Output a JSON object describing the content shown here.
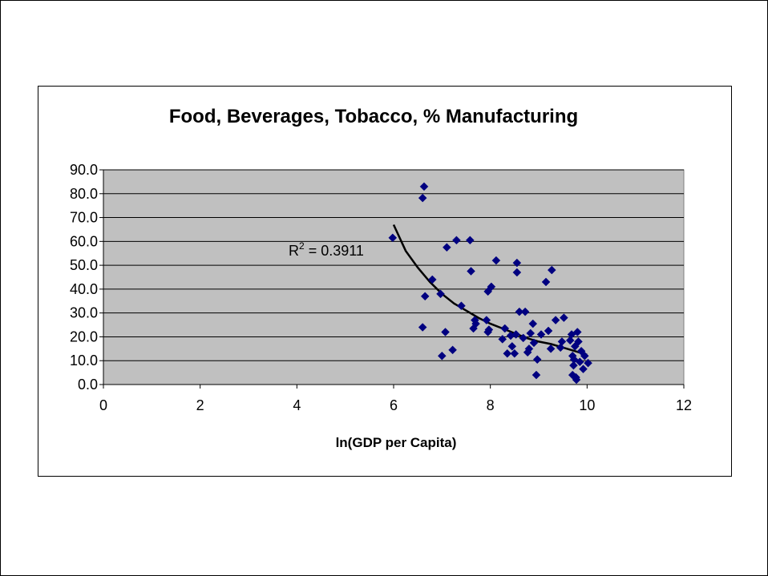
{
  "chart_data": {
    "type": "scatter",
    "title": "Food, Beverages, Tobacco, % Manufacturing",
    "xlabel": "ln(GDP per Capita)",
    "ylabel": "",
    "xlim": [
      0,
      12
    ],
    "ylim": [
      0,
      90
    ],
    "xticks": [
      "0",
      "2",
      "4",
      "6",
      "8",
      "10",
      "12"
    ],
    "yticks": [
      "0.0",
      "10.0",
      "20.0",
      "30.0",
      "40.0",
      "50.0",
      "60.0",
      "70.0",
      "80.0",
      "90.0"
    ],
    "grid": "horizontal",
    "plot_background": "#c0c0c0",
    "marker": "diamond",
    "marker_color": "#000080",
    "trendline": {
      "type": "power",
      "r2_label": "R",
      "r2_sup": "2",
      "r2_value": " = 0.3911",
      "x_range": [
        6.0,
        10.0
      ],
      "points": [
        [
          6.0,
          67
        ],
        [
          6.25,
          56
        ],
        [
          6.5,
          49
        ],
        [
          6.75,
          43
        ],
        [
          7.0,
          38
        ],
        [
          7.25,
          34
        ],
        [
          7.5,
          31
        ],
        [
          7.75,
          28
        ],
        [
          8.0,
          25.5
        ],
        [
          8.25,
          23.5
        ],
        [
          8.5,
          21.5
        ],
        [
          8.75,
          19.5
        ],
        [
          9.0,
          18
        ],
        [
          9.25,
          17
        ],
        [
          9.5,
          15.5
        ],
        [
          9.75,
          14
        ],
        [
          10.0,
          12.5
        ]
      ]
    },
    "points": [
      [
        5.98,
        61.5
      ],
      [
        6.6,
        78.2
      ],
      [
        6.63,
        83.0
      ],
      [
        6.65,
        37.0
      ],
      [
        6.6,
        24.0
      ],
      [
        6.8,
        44.0
      ],
      [
        6.97,
        38.0
      ],
      [
        7.0,
        12.0
      ],
      [
        7.07,
        22.0
      ],
      [
        7.1,
        57.5
      ],
      [
        7.22,
        14.5
      ],
      [
        7.3,
        60.5
      ],
      [
        7.4,
        33.0
      ],
      [
        7.58,
        60.5
      ],
      [
        7.6,
        47.5
      ],
      [
        7.65,
        23.5
      ],
      [
        7.68,
        27.0
      ],
      [
        7.7,
        25.5
      ],
      [
        7.92,
        27.0
      ],
      [
        7.95,
        22.0
      ],
      [
        7.95,
        39.0
      ],
      [
        7.97,
        23.0
      ],
      [
        8.02,
        41.0
      ],
      [
        8.12,
        52.0
      ],
      [
        8.25,
        19.0
      ],
      [
        8.3,
        23.5
      ],
      [
        8.35,
        13.0
      ],
      [
        8.42,
        20.5
      ],
      [
        8.45,
        16.0
      ],
      [
        8.5,
        13.0
      ],
      [
        8.53,
        21.0
      ],
      [
        8.55,
        51.0
      ],
      [
        8.55,
        47.0
      ],
      [
        8.6,
        30.5
      ],
      [
        8.68,
        19.5
      ],
      [
        8.72,
        30.5
      ],
      [
        8.77,
        13.5
      ],
      [
        8.8,
        15.0
      ],
      [
        8.83,
        21.5
      ],
      [
        8.88,
        25.5
      ],
      [
        8.9,
        17.5
      ],
      [
        8.95,
        4.0
      ],
      [
        8.97,
        10.5
      ],
      [
        9.05,
        21.0
      ],
      [
        9.15,
        43.0
      ],
      [
        9.2,
        22.5
      ],
      [
        9.25,
        15.0
      ],
      [
        9.27,
        48.0
      ],
      [
        9.35,
        27.0
      ],
      [
        9.45,
        15.5
      ],
      [
        9.48,
        18.0
      ],
      [
        9.52,
        28.0
      ],
      [
        9.65,
        18.5
      ],
      [
        9.68,
        21.0
      ],
      [
        9.7,
        4.0
      ],
      [
        9.72,
        8.0
      ],
      [
        9.73,
        10.5
      ],
      [
        9.75,
        16.0
      ],
      [
        9.77,
        3.0
      ],
      [
        9.78,
        2.0
      ],
      [
        9.8,
        22.0
      ],
      [
        9.82,
        18.0
      ],
      [
        9.85,
        9.5
      ],
      [
        9.88,
        14.0
      ],
      [
        9.92,
        6.5
      ],
      [
        9.95,
        12.0
      ],
      [
        10.02,
        9.0
      ],
      [
        9.7,
        12.0
      ]
    ]
  }
}
